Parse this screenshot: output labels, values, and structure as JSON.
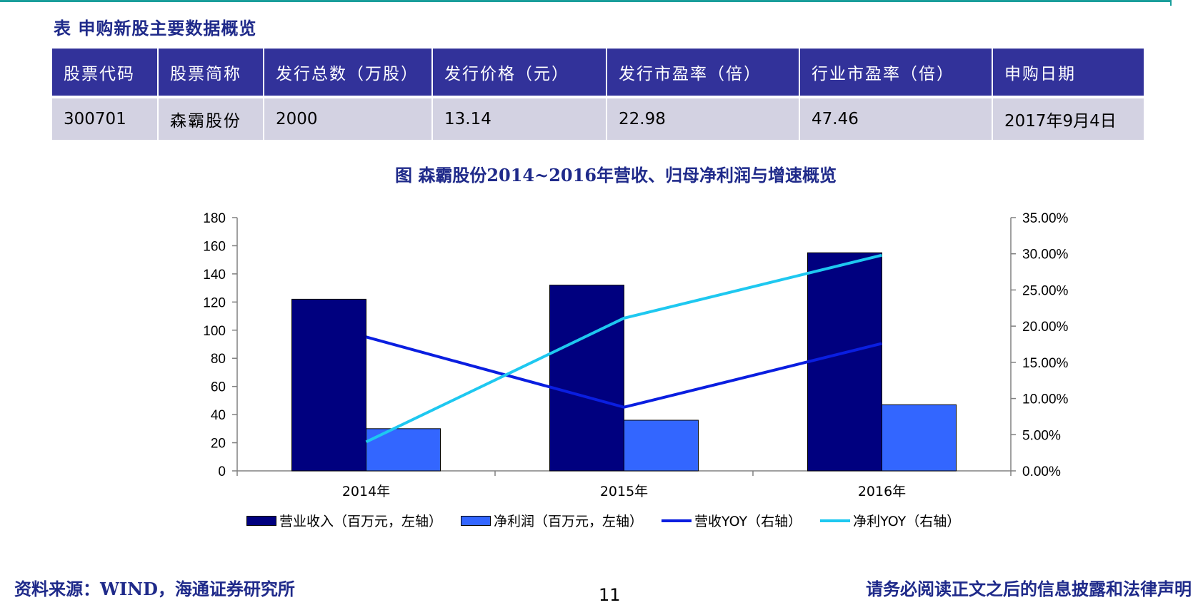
{
  "table": {
    "title": "表 申购新股主要数据概览",
    "headers": [
      "股票代码",
      "股票简称",
      "发行总数（万股）",
      "发行价格（元）",
      "发行市盈率（倍）",
      "行业市盈率（倍）",
      "申购日期"
    ],
    "row": [
      "300701",
      "森霸股份",
      "2000",
      "13.14",
      "22.98",
      "47.46",
      "2017年9月4日"
    ]
  },
  "colors": {
    "heading": "#1f2a8a",
    "table_header_bg": "#32329a",
    "table_row_bg": "#d3d2e2",
    "rule": "#1a9e9b"
  },
  "chart_data": {
    "type": "bar",
    "title": "图 森霸股份2014~2016年营收、归母净利润与增速概览",
    "categories": [
      "2014年",
      "2015年",
      "2016年"
    ],
    "ylim_left": [
      0,
      180
    ],
    "yticks_left": [
      "0",
      "20",
      "40",
      "60",
      "80",
      "100",
      "120",
      "140",
      "160",
      "180"
    ],
    "ylim_right": [
      0,
      0.35
    ],
    "yticks_right": [
      "0.00%",
      "5.00%",
      "10.00%",
      "15.00%",
      "20.00%",
      "25.00%",
      "30.00%",
      "35.00%"
    ],
    "grid": false,
    "legend_position": "bottom",
    "series": [
      {
        "name": "营业收入（百万元，左轴）",
        "kind": "bar",
        "axis": "left",
        "color": "#00007f",
        "values": [
          122,
          132,
          155
        ]
      },
      {
        "name": "净利润（百万元，左轴）",
        "kind": "bar",
        "axis": "left",
        "color": "#3366ff",
        "values": [
          30,
          36,
          47
        ]
      },
      {
        "name": "营收YOY（右轴）",
        "kind": "line",
        "axis": "right",
        "color": "#0a1ee0",
        "values": [
          0.185,
          0.088,
          0.176
        ]
      },
      {
        "name": "净利YOY（右轴）",
        "kind": "line",
        "axis": "right",
        "color": "#1ec8f0",
        "values": [
          0.04,
          0.211,
          0.298
        ]
      }
    ]
  },
  "footer": {
    "source": "资料来源：WIND，海通证券研究所",
    "page_number": "11",
    "disclaimer": "请务必阅读正文之后的信息披露和法律声明"
  }
}
